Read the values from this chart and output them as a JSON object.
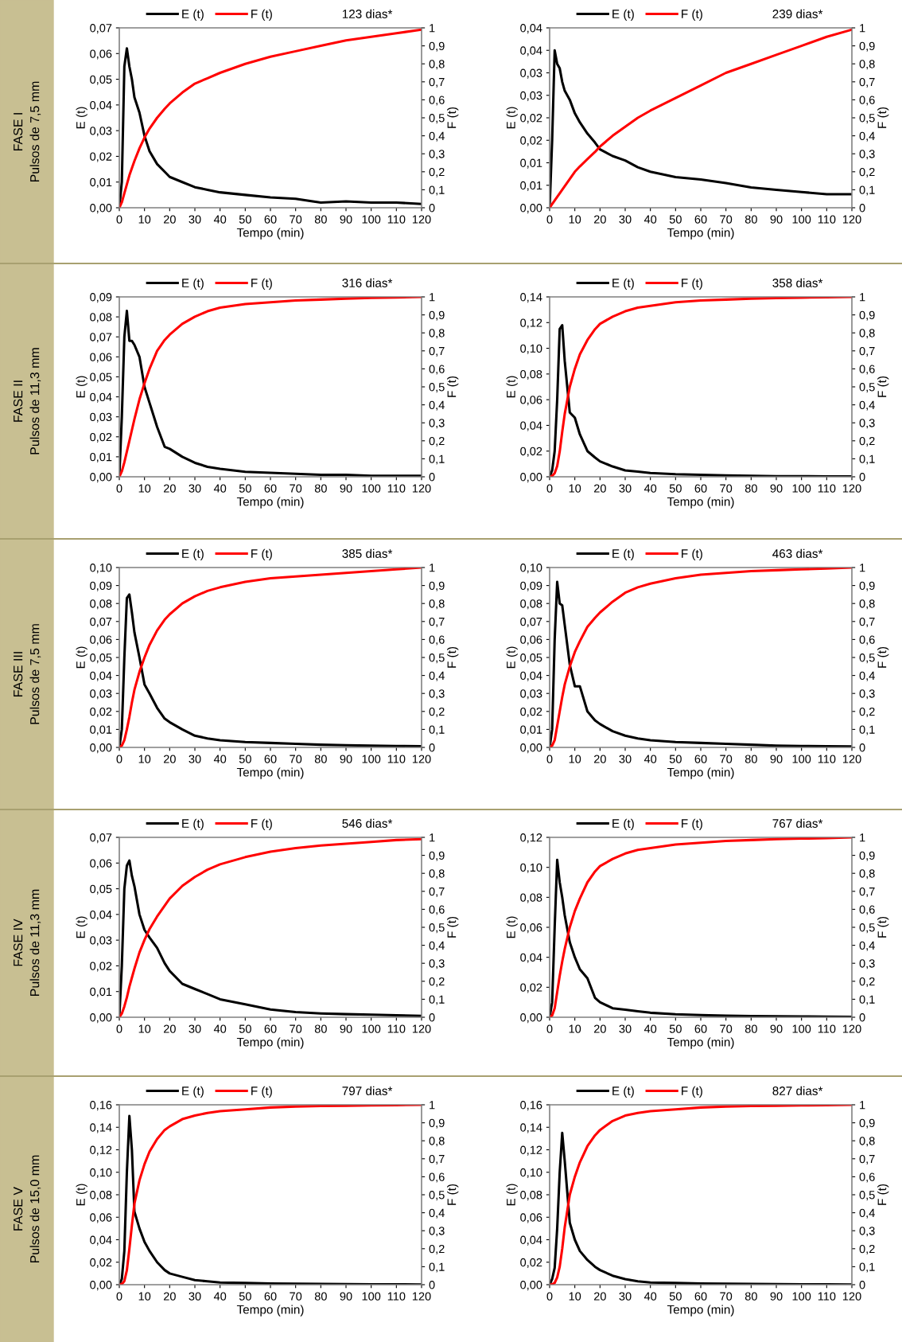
{
  "chart_data": [
    {
      "type": "line",
      "xlabel": "Tempo (min)",
      "ylabel": "E (t)",
      "y2label": "F (t)",
      "legend": "top",
      "annotations": [
        "123 dias*",
        "FASE I",
        "Pulsos de 7,5 mm"
      ],
      "x": [
        0,
        1,
        2,
        3,
        4,
        5,
        6,
        8,
        10,
        12,
        15,
        18,
        20,
        25,
        30,
        35,
        40,
        50,
        60,
        70,
        80,
        90,
        100,
        110,
        120
      ],
      "xlim": [
        0,
        120
      ],
      "xticks": [
        0,
        10,
        20,
        30,
        40,
        50,
        60,
        70,
        80,
        90,
        100,
        110,
        120
      ],
      "ylim": [
        0,
        0.07
      ],
      "yticks": [
        {
          "value": 0,
          "label": "0,00"
        },
        {
          "value": 0.01,
          "label": "0,01"
        },
        {
          "value": 0.02,
          "label": "0,02"
        },
        {
          "value": 0.03,
          "label": "0,03"
        },
        {
          "value": 0.04,
          "label": "0,04"
        },
        {
          "value": 0.05,
          "label": "0,05"
        },
        {
          "value": 0.06,
          "label": "0,06"
        },
        {
          "value": 0.07,
          "label": "0,07"
        }
      ],
      "y2lim": [
        0,
        1
      ],
      "y2ticks": [
        {
          "value": 0,
          "label": "0"
        },
        {
          "value": 0.1,
          "label": "0,1"
        },
        {
          "value": 0.2,
          "label": "0,2"
        },
        {
          "value": 0.3,
          "label": "0,3"
        },
        {
          "value": 0.4,
          "label": "0,4"
        },
        {
          "value": 0.5,
          "label": "0,5"
        },
        {
          "value": 0.6,
          "label": "0,6"
        },
        {
          "value": 0.7,
          "label": "0,7"
        },
        {
          "value": 0.8,
          "label": "0,8"
        },
        {
          "value": 0.9,
          "label": "0,9"
        },
        {
          "value": 1,
          "label": "1"
        }
      ],
      "series": [
        {
          "name": "E (t)",
          "color": "#000000",
          "values": [
            0,
            0.01,
            0.055,
            0.062,
            0.055,
            0.05,
            0.043,
            0.037,
            0.028,
            0.022,
            0.017,
            0.014,
            0.012,
            0.01,
            0.008,
            0.007,
            0.006,
            0.005,
            0.004,
            0.0035,
            0.002,
            0.0025,
            0.002,
            0.002,
            0.0015
          ]
        },
        {
          "name": "F (t)",
          "color": "#ff0000",
          "axis": "y2",
          "values": [
            0,
            0.03,
            0.08,
            0.13,
            0.18,
            0.22,
            0.26,
            0.33,
            0.39,
            0.44,
            0.5,
            0.55,
            0.58,
            0.64,
            0.69,
            0.72,
            0.75,
            0.8,
            0.84,
            0.87,
            0.9,
            0.93,
            0.95,
            0.97,
            0.99
          ]
        }
      ]
    },
    {
      "type": "line",
      "xlabel": "Tempo (min)",
      "ylabel": "E (t)",
      "y2label": "F (t)",
      "legend": "top",
      "annotations": [
        "239 dias*"
      ],
      "x": [
        0,
        1,
        2,
        3,
        4,
        5,
        6,
        8,
        10,
        12,
        15,
        18,
        20,
        25,
        30,
        35,
        40,
        50,
        60,
        70,
        80,
        90,
        100,
        110,
        120
      ],
      "xlim": [
        0,
        120
      ],
      "xticks": [
        0,
        10,
        20,
        30,
        40,
        50,
        60,
        70,
        80,
        90,
        100,
        110,
        120
      ],
      "ylim": [
        0,
        0.04
      ],
      "yticks": [
        {
          "value": 0,
          "label": "0,00"
        },
        {
          "value": 0.005,
          "label": "0,01"
        },
        {
          "value": 0.01,
          "label": "0,01"
        },
        {
          "value": 0.015,
          "label": "0,02"
        },
        {
          "value": 0.02,
          "label": "0,02"
        },
        {
          "value": 0.025,
          "label": "0,03"
        },
        {
          "value": 0.03,
          "label": "0,03"
        },
        {
          "value": 0.035,
          "label": "0,04"
        },
        {
          "value": 0.04,
          "label": "0,04"
        }
      ],
      "y2lim": [
        0,
        1
      ],
      "y2ticks": [
        {
          "value": 0,
          "label": "0"
        },
        {
          "value": 0.1,
          "label": "0,1"
        },
        {
          "value": 0.2,
          "label": "0,2"
        },
        {
          "value": 0.3,
          "label": "0,3"
        },
        {
          "value": 0.4,
          "label": "0,4"
        },
        {
          "value": 0.5,
          "label": "0,5"
        },
        {
          "value": 0.6,
          "label": "0,6"
        },
        {
          "value": 0.7,
          "label": "0,7"
        },
        {
          "value": 0.8,
          "label": "0,8"
        },
        {
          "value": 0.9,
          "label": "0,9"
        },
        {
          "value": 1,
          "label": "1"
        }
      ],
      "series": [
        {
          "name": "E (t)",
          "color": "#000000",
          "values": [
            0,
            0.015,
            0.035,
            0.032,
            0.031,
            0.028,
            0.026,
            0.024,
            0.021,
            0.019,
            0.0165,
            0.0145,
            0.013,
            0.0115,
            0.0105,
            0.009,
            0.008,
            0.0068,
            0.0063,
            0.0055,
            0.0045,
            0.004,
            0.0035,
            0.003,
            0.003
          ]
        },
        {
          "name": "F (t)",
          "color": "#ff0000",
          "axis": "y2",
          "values": [
            0,
            0.02,
            0.04,
            0.06,
            0.08,
            0.1,
            0.12,
            0.16,
            0.2,
            0.23,
            0.27,
            0.31,
            0.34,
            0.4,
            0.45,
            0.5,
            0.54,
            0.61,
            0.68,
            0.75,
            0.8,
            0.85,
            0.9,
            0.95,
            0.99
          ]
        }
      ]
    },
    {
      "type": "line",
      "xlabel": "Tempo (min)",
      "ylabel": "E (t)",
      "y2label": "F (t)",
      "legend": "top",
      "annotations": [
        "316 dias*",
        "FASE II",
        "Pulsos de 11,3 mm"
      ],
      "x": [
        0,
        1,
        2,
        3,
        4,
        5,
        6,
        8,
        10,
        12,
        15,
        18,
        20,
        25,
        30,
        35,
        40,
        50,
        60,
        70,
        80,
        90,
        100,
        110,
        120
      ],
      "xlim": [
        0,
        120
      ],
      "xticks": [
        0,
        10,
        20,
        30,
        40,
        50,
        60,
        70,
        80,
        90,
        100,
        110,
        120
      ],
      "ylim": [
        0,
        0.09
      ],
      "yticks": [
        {
          "value": 0,
          "label": "0,00"
        },
        {
          "value": 0.01,
          "label": "0,01"
        },
        {
          "value": 0.02,
          "label": "0,02"
        },
        {
          "value": 0.03,
          "label": "0,03"
        },
        {
          "value": 0.04,
          "label": "0,04"
        },
        {
          "value": 0.05,
          "label": "0,05"
        },
        {
          "value": 0.06,
          "label": "0,06"
        },
        {
          "value": 0.07,
          "label": "0,07"
        },
        {
          "value": 0.08,
          "label": "0,08"
        },
        {
          "value": 0.09,
          "label": "0,09"
        }
      ],
      "y2lim": [
        0,
        1
      ],
      "y2ticks": [
        {
          "value": 0,
          "label": "0"
        },
        {
          "value": 0.1,
          "label": "0,1"
        },
        {
          "value": 0.2,
          "label": "0,2"
        },
        {
          "value": 0.3,
          "label": "0,3"
        },
        {
          "value": 0.4,
          "label": "0,4"
        },
        {
          "value": 0.5,
          "label": "0,5"
        },
        {
          "value": 0.6,
          "label": "0,6"
        },
        {
          "value": 0.7,
          "label": "0,7"
        },
        {
          "value": 0.8,
          "label": "0,8"
        },
        {
          "value": 0.9,
          "label": "0,9"
        },
        {
          "value": 1,
          "label": "1"
        }
      ],
      "series": [
        {
          "name": "E (t)",
          "color": "#000000",
          "values": [
            0,
            0.03,
            0.07,
            0.083,
            0.068,
            0.068,
            0.066,
            0.06,
            0.045,
            0.037,
            0.025,
            0.015,
            0.014,
            0.01,
            0.007,
            0.005,
            0.004,
            0.0025,
            0.002,
            0.0015,
            0.001,
            0.001,
            0.0005,
            0.0005,
            0.0005
          ]
        },
        {
          "name": "F (t)",
          "color": "#ff0000",
          "axis": "y2",
          "values": [
            0,
            0.03,
            0.08,
            0.14,
            0.2,
            0.26,
            0.32,
            0.43,
            0.52,
            0.6,
            0.7,
            0.76,
            0.79,
            0.85,
            0.89,
            0.92,
            0.94,
            0.96,
            0.97,
            0.98,
            0.985,
            0.99,
            0.995,
            0.997,
            1
          ]
        }
      ]
    },
    {
      "type": "line",
      "xlabel": "Tempo (min)",
      "ylabel": "E (t)",
      "y2label": "F (t)",
      "legend": "top",
      "annotations": [
        "358 dias*"
      ],
      "x": [
        0,
        1,
        2,
        3,
        4,
        5,
        6,
        8,
        10,
        12,
        15,
        18,
        20,
        25,
        30,
        35,
        40,
        50,
        60,
        70,
        80,
        90,
        100,
        110,
        120
      ],
      "xlim": [
        0,
        120
      ],
      "xticks": [
        0,
        10,
        20,
        30,
        40,
        50,
        60,
        70,
        80,
        90,
        100,
        110,
        120
      ],
      "ylim": [
        0,
        0.14
      ],
      "yticks": [
        {
          "value": 0,
          "label": "0,00"
        },
        {
          "value": 0.02,
          "label": "0,02"
        },
        {
          "value": 0.04,
          "label": "0,04"
        },
        {
          "value": 0.06,
          "label": "0,06"
        },
        {
          "value": 0.08,
          "label": "0,08"
        },
        {
          "value": 0.1,
          "label": "0,10"
        },
        {
          "value": 0.12,
          "label": "0,12"
        },
        {
          "value": 0.14,
          "label": "0,14"
        }
      ],
      "y2lim": [
        0,
        1
      ],
      "y2ticks": [
        {
          "value": 0,
          "label": "0"
        },
        {
          "value": 0.1,
          "label": "0,1"
        },
        {
          "value": 0.2,
          "label": "0,2"
        },
        {
          "value": 0.3,
          "label": "0,3"
        },
        {
          "value": 0.4,
          "label": "0,4"
        },
        {
          "value": 0.5,
          "label": "0,5"
        },
        {
          "value": 0.6,
          "label": "0,6"
        },
        {
          "value": 0.7,
          "label": "0,7"
        },
        {
          "value": 0.8,
          "label": "0,8"
        },
        {
          "value": 0.9,
          "label": "0,9"
        },
        {
          "value": 1,
          "label": "1"
        }
      ],
      "series": [
        {
          "name": "E (t)",
          "color": "#000000",
          "values": [
            0,
            0.005,
            0.02,
            0.06,
            0.115,
            0.118,
            0.09,
            0.05,
            0.046,
            0.033,
            0.02,
            0.015,
            0.012,
            0.008,
            0.005,
            0.004,
            0.003,
            0.002,
            0.0015,
            0.001,
            0.0008,
            0.0005,
            0.0005,
            0.0003,
            0.0003
          ]
        },
        {
          "name": "F (t)",
          "color": "#ff0000",
          "axis": "y2",
          "values": [
            0,
            0.005,
            0.02,
            0.06,
            0.14,
            0.25,
            0.35,
            0.5,
            0.6,
            0.68,
            0.76,
            0.82,
            0.85,
            0.89,
            0.92,
            0.94,
            0.95,
            0.97,
            0.98,
            0.985,
            0.99,
            0.993,
            0.996,
            0.998,
            1
          ]
        }
      ]
    },
    {
      "type": "line",
      "xlabel": "Tempo (min)",
      "ylabel": "E (t)",
      "y2label": "F (t)",
      "legend": "top",
      "annotations": [
        "385 dias*",
        "FASE III",
        "Pulsos de 7,5 mm"
      ],
      "x": [
        0,
        1,
        2,
        3,
        4,
        5,
        6,
        8,
        10,
        12,
        15,
        18,
        20,
        25,
        30,
        35,
        40,
        50,
        60,
        70,
        80,
        90,
        100,
        110,
        120
      ],
      "xlim": [
        0,
        120
      ],
      "xticks": [
        0,
        10,
        20,
        30,
        40,
        50,
        60,
        70,
        80,
        90,
        100,
        110,
        120
      ],
      "ylim": [
        0,
        0.1
      ],
      "yticks": [
        {
          "value": 0,
          "label": "0,00"
        },
        {
          "value": 0.01,
          "label": "0,01"
        },
        {
          "value": 0.02,
          "label": "0,02"
        },
        {
          "value": 0.03,
          "label": "0,03"
        },
        {
          "value": 0.04,
          "label": "0,04"
        },
        {
          "value": 0.05,
          "label": "0,05"
        },
        {
          "value": 0.06,
          "label": "0,06"
        },
        {
          "value": 0.07,
          "label": "0,07"
        },
        {
          "value": 0.08,
          "label": "0,08"
        },
        {
          "value": 0.09,
          "label": "0,09"
        },
        {
          "value": 0.1,
          "label": "0,10"
        }
      ],
      "y2lim": [
        0,
        1
      ],
      "y2ticks": [
        {
          "value": 0,
          "label": "0"
        },
        {
          "value": 0.1,
          "label": "0,1"
        },
        {
          "value": 0.2,
          "label": "0,2"
        },
        {
          "value": 0.3,
          "label": "0,3"
        },
        {
          "value": 0.4,
          "label": "0,4"
        },
        {
          "value": 0.5,
          "label": "0,5"
        },
        {
          "value": 0.6,
          "label": "0,6"
        },
        {
          "value": 0.7,
          "label": "0,7"
        },
        {
          "value": 0.8,
          "label": "0,8"
        },
        {
          "value": 0.9,
          "label": "0,9"
        },
        {
          "value": 1,
          "label": "1"
        }
      ],
      "series": [
        {
          "name": "E (t)",
          "color": "#000000",
          "values": [
            0,
            0.01,
            0.05,
            0.083,
            0.085,
            0.075,
            0.064,
            0.05,
            0.035,
            0.03,
            0.022,
            0.016,
            0.014,
            0.01,
            0.0065,
            0.005,
            0.004,
            0.003,
            0.0025,
            0.002,
            0.0015,
            0.0012,
            0.001,
            0.0008,
            0.0006
          ]
        },
        {
          "name": "F (t)",
          "color": "#ff0000",
          "axis": "y2",
          "values": [
            0,
            0.01,
            0.04,
            0.1,
            0.17,
            0.25,
            0.32,
            0.42,
            0.5,
            0.57,
            0.65,
            0.71,
            0.74,
            0.8,
            0.84,
            0.87,
            0.89,
            0.92,
            0.94,
            0.95,
            0.96,
            0.97,
            0.98,
            0.99,
            1
          ]
        }
      ]
    },
    {
      "type": "line",
      "xlabel": "Tempo (min)",
      "ylabel": "E (t)",
      "y2label": "F (t)",
      "legend": "top",
      "annotations": [
        "463 dias*"
      ],
      "x": [
        0,
        1,
        2,
        3,
        4,
        5,
        6,
        8,
        10,
        12,
        15,
        18,
        20,
        25,
        30,
        35,
        40,
        50,
        60,
        70,
        80,
        90,
        100,
        110,
        120
      ],
      "xlim": [
        0,
        120
      ],
      "xticks": [
        0,
        10,
        20,
        30,
        40,
        50,
        60,
        70,
        80,
        90,
        100,
        110,
        120
      ],
      "ylim": [
        0,
        0.1
      ],
      "yticks": [
        {
          "value": 0,
          "label": "0,00"
        },
        {
          "value": 0.01,
          "label": "0,01"
        },
        {
          "value": 0.02,
          "label": "0,02"
        },
        {
          "value": 0.03,
          "label": "0,03"
        },
        {
          "value": 0.04,
          "label": "0,04"
        },
        {
          "value": 0.05,
          "label": "0,05"
        },
        {
          "value": 0.06,
          "label": "0,06"
        },
        {
          "value": 0.07,
          "label": "0,07"
        },
        {
          "value": 0.08,
          "label": "0,08"
        },
        {
          "value": 0.09,
          "label": "0,09"
        },
        {
          "value": 0.1,
          "label": "0,10"
        }
      ],
      "y2lim": [
        0,
        1
      ],
      "y2ticks": [
        {
          "value": 0,
          "label": "0"
        },
        {
          "value": 0.1,
          "label": "0,1"
        },
        {
          "value": 0.2,
          "label": "0,2"
        },
        {
          "value": 0.3,
          "label": "0,3"
        },
        {
          "value": 0.4,
          "label": "0,4"
        },
        {
          "value": 0.5,
          "label": "0,5"
        },
        {
          "value": 0.6,
          "label": "0,6"
        },
        {
          "value": 0.7,
          "label": "0,7"
        },
        {
          "value": 0.8,
          "label": "0,8"
        },
        {
          "value": 0.9,
          "label": "0,9"
        },
        {
          "value": 1,
          "label": "1"
        }
      ],
      "series": [
        {
          "name": "E (t)",
          "color": "#000000",
          "values": [
            0,
            0.01,
            0.06,
            0.092,
            0.08,
            0.079,
            0.068,
            0.046,
            0.034,
            0.034,
            0.02,
            0.015,
            0.013,
            0.009,
            0.0065,
            0.005,
            0.004,
            0.003,
            0.0025,
            0.002,
            0.0015,
            0.001,
            0.0008,
            0.0006,
            0.0005
          ]
        },
        {
          "name": "F (t)",
          "color": "#ff0000",
          "axis": "y2",
          "values": [
            0,
            0.01,
            0.04,
            0.12,
            0.2,
            0.28,
            0.35,
            0.45,
            0.53,
            0.59,
            0.67,
            0.72,
            0.75,
            0.81,
            0.86,
            0.89,
            0.91,
            0.94,
            0.96,
            0.97,
            0.98,
            0.985,
            0.99,
            0.995,
            1
          ]
        }
      ]
    },
    {
      "type": "line",
      "xlabel": "Tempo (min)",
      "ylabel": "E (t)",
      "y2label": "F (t)",
      "legend": "top",
      "annotations": [
        "546 dias*",
        "FASE IV",
        "Pulsos de 11,3 mm"
      ],
      "x": [
        0,
        1,
        2,
        3,
        4,
        5,
        6,
        8,
        10,
        12,
        15,
        18,
        20,
        25,
        30,
        35,
        40,
        50,
        60,
        70,
        80,
        90,
        100,
        110,
        120
      ],
      "xlim": [
        0,
        120
      ],
      "xticks": [
        0,
        10,
        20,
        30,
        40,
        50,
        60,
        70,
        80,
        90,
        100,
        110,
        120
      ],
      "ylim": [
        0,
        0.07
      ],
      "yticks": [
        {
          "value": 0,
          "label": "0,00"
        },
        {
          "value": 0.01,
          "label": "0,01"
        },
        {
          "value": 0.02,
          "label": "0,02"
        },
        {
          "value": 0.03,
          "label": "0,03"
        },
        {
          "value": 0.04,
          "label": "0,04"
        },
        {
          "value": 0.05,
          "label": "0,05"
        },
        {
          "value": 0.06,
          "label": "0,06"
        },
        {
          "value": 0.07,
          "label": "0,07"
        }
      ],
      "y2lim": [
        0,
        1
      ],
      "y2ticks": [
        {
          "value": 0,
          "label": "0"
        },
        {
          "value": 0.1,
          "label": "0,1"
        },
        {
          "value": 0.2,
          "label": "0,2"
        },
        {
          "value": 0.3,
          "label": "0,3"
        },
        {
          "value": 0.4,
          "label": "0,4"
        },
        {
          "value": 0.5,
          "label": "0,5"
        },
        {
          "value": 0.6,
          "label": "0,6"
        },
        {
          "value": 0.7,
          "label": "0,7"
        },
        {
          "value": 0.8,
          "label": "0,8"
        },
        {
          "value": 0.9,
          "label": "0,9"
        },
        {
          "value": 1,
          "label": "1"
        }
      ],
      "series": [
        {
          "name": "E (t)",
          "color": "#000000",
          "values": [
            0,
            0.02,
            0.05,
            0.059,
            0.061,
            0.055,
            0.051,
            0.04,
            0.034,
            0.031,
            0.027,
            0.021,
            0.018,
            0.013,
            0.011,
            0.009,
            0.007,
            0.005,
            0.003,
            0.002,
            0.0015,
            0.0012,
            0.001,
            0.0008,
            0.0005
          ]
        },
        {
          "name": "F (t)",
          "color": "#ff0000",
          "axis": "y2",
          "values": [
            0,
            0.02,
            0.06,
            0.11,
            0.17,
            0.22,
            0.27,
            0.36,
            0.43,
            0.49,
            0.56,
            0.62,
            0.66,
            0.73,
            0.78,
            0.82,
            0.85,
            0.89,
            0.92,
            0.94,
            0.955,
            0.965,
            0.975,
            0.985,
            0.99
          ]
        }
      ]
    },
    {
      "type": "line",
      "xlabel": "Tempo (min)",
      "ylabel": "E (t)",
      "y2label": "F (t)",
      "legend": "top",
      "annotations": [
        "767 dias*"
      ],
      "x": [
        0,
        1,
        2,
        3,
        4,
        5,
        6,
        8,
        10,
        12,
        15,
        18,
        20,
        25,
        30,
        35,
        40,
        50,
        60,
        70,
        80,
        90,
        100,
        110,
        120
      ],
      "xlim": [
        0,
        120
      ],
      "xticks": [
        0,
        10,
        20,
        30,
        40,
        50,
        60,
        70,
        80,
        90,
        100,
        110,
        120
      ],
      "ylim": [
        0,
        0.12
      ],
      "yticks": [
        {
          "value": 0,
          "label": "0,00"
        },
        {
          "value": 0.02,
          "label": "0,02"
        },
        {
          "value": 0.04,
          "label": "0,04"
        },
        {
          "value": 0.06,
          "label": "0,06"
        },
        {
          "value": 0.08,
          "label": "0,08"
        },
        {
          "value": 0.1,
          "label": "0,10"
        },
        {
          "value": 0.12,
          "label": "0,12"
        }
      ],
      "y2lim": [
        0,
        1
      ],
      "y2ticks": [
        {
          "value": 0,
          "label": "0"
        },
        {
          "value": 0.1,
          "label": "0,1"
        },
        {
          "value": 0.2,
          "label": "0,2"
        },
        {
          "value": 0.3,
          "label": "0,3"
        },
        {
          "value": 0.4,
          "label": "0,4"
        },
        {
          "value": 0.5,
          "label": "0,5"
        },
        {
          "value": 0.6,
          "label": "0,6"
        },
        {
          "value": 0.7,
          "label": "0,7"
        },
        {
          "value": 0.8,
          "label": "0,8"
        },
        {
          "value": 0.9,
          "label": "0,9"
        },
        {
          "value": 1,
          "label": "1"
        }
      ],
      "series": [
        {
          "name": "E (t)",
          "color": "#000000",
          "values": [
            0,
            0.01,
            0.06,
            0.105,
            0.09,
            0.08,
            0.068,
            0.05,
            0.04,
            0.032,
            0.026,
            0.013,
            0.01,
            0.006,
            0.005,
            0.004,
            0.003,
            0.002,
            0.0015,
            0.001,
            0.0008,
            0.0006,
            0.0005,
            0.0004,
            0.0003
          ]
        },
        {
          "name": "F (t)",
          "color": "#ff0000",
          "axis": "y2",
          "values": [
            0,
            0.01,
            0.05,
            0.14,
            0.23,
            0.31,
            0.38,
            0.5,
            0.59,
            0.66,
            0.75,
            0.81,
            0.84,
            0.88,
            0.91,
            0.93,
            0.94,
            0.96,
            0.97,
            0.98,
            0.985,
            0.99,
            0.993,
            0.996,
            1
          ]
        }
      ]
    },
    {
      "type": "line",
      "xlabel": "Tempo (min)",
      "ylabel": "E (t)",
      "y2label": "F (t)",
      "legend": "top",
      "annotations": [
        "797 dias*",
        "FASE V",
        "Pulsos de 15,0 mm"
      ],
      "x": [
        0,
        1,
        2,
        3,
        4,
        5,
        6,
        8,
        10,
        12,
        15,
        18,
        20,
        25,
        30,
        35,
        40,
        50,
        60,
        70,
        80,
        90,
        100,
        110,
        120
      ],
      "xlim": [
        0,
        120
      ],
      "xticks": [
        0,
        10,
        20,
        30,
        40,
        50,
        60,
        70,
        80,
        90,
        100,
        110,
        120
      ],
      "ylim": [
        0,
        0.16
      ],
      "yticks": [
        {
          "value": 0,
          "label": "0,00"
        },
        {
          "value": 0.02,
          "label": "0,02"
        },
        {
          "value": 0.04,
          "label": "0,04"
        },
        {
          "value": 0.06,
          "label": "0,06"
        },
        {
          "value": 0.08,
          "label": "0,08"
        },
        {
          "value": 0.1,
          "label": "0,10"
        },
        {
          "value": 0.12,
          "label": "0,12"
        },
        {
          "value": 0.14,
          "label": "0,14"
        },
        {
          "value": 0.16,
          "label": "0,16"
        }
      ],
      "y2lim": [
        0,
        1
      ],
      "y2ticks": [
        {
          "value": 0,
          "label": "0"
        },
        {
          "value": 0.1,
          "label": "0,1"
        },
        {
          "value": 0.2,
          "label": "0,2"
        },
        {
          "value": 0.3,
          "label": "0,3"
        },
        {
          "value": 0.4,
          "label": "0,4"
        },
        {
          "value": 0.5,
          "label": "0,5"
        },
        {
          "value": 0.6,
          "label": "0,6"
        },
        {
          "value": 0.7,
          "label": "0,7"
        },
        {
          "value": 0.8,
          "label": "0,8"
        },
        {
          "value": 0.9,
          "label": "0,9"
        },
        {
          "value": 1,
          "label": "1"
        }
      ],
      "series": [
        {
          "name": "E (t)",
          "color": "#000000",
          "values": [
            0,
            0.005,
            0.03,
            0.1,
            0.15,
            0.12,
            0.065,
            0.05,
            0.038,
            0.03,
            0.02,
            0.013,
            0.01,
            0.007,
            0.004,
            0.003,
            0.002,
            0.0015,
            0.001,
            0.0008,
            0.0006,
            0.0005,
            0.0004,
            0.0003,
            0.0002
          ]
        },
        {
          "name": "F (t)",
          "color": "#ff0000",
          "axis": "y2",
          "values": [
            0,
            0.003,
            0.02,
            0.08,
            0.2,
            0.33,
            0.45,
            0.58,
            0.67,
            0.74,
            0.81,
            0.86,
            0.88,
            0.92,
            0.94,
            0.955,
            0.965,
            0.975,
            0.985,
            0.99,
            0.993,
            0.995,
            0.997,
            0.998,
            1
          ]
        }
      ]
    },
    {
      "type": "line",
      "xlabel": "Tempo (min)",
      "ylabel": "E (t)",
      "y2label": "F (t)",
      "legend": "top",
      "annotations": [
        "827 dias*"
      ],
      "x": [
        0,
        1,
        2,
        3,
        4,
        5,
        6,
        8,
        10,
        12,
        15,
        18,
        20,
        25,
        30,
        35,
        40,
        50,
        60,
        70,
        80,
        90,
        100,
        110,
        120
      ],
      "xlim": [
        0,
        120
      ],
      "xticks": [
        0,
        10,
        20,
        30,
        40,
        50,
        60,
        70,
        80,
        90,
        100,
        110,
        120
      ],
      "ylim": [
        0,
        0.16
      ],
      "yticks": [
        {
          "value": 0,
          "label": "0,00"
        },
        {
          "value": 0.02,
          "label": "0,02"
        },
        {
          "value": 0.04,
          "label": "0,04"
        },
        {
          "value": 0.06,
          "label": "0,06"
        },
        {
          "value": 0.08,
          "label": "0,08"
        },
        {
          "value": 0.1,
          "label": "0,10"
        },
        {
          "value": 0.12,
          "label": "0,12"
        },
        {
          "value": 0.14,
          "label": "0,14"
        },
        {
          "value": 0.16,
          "label": "0,16"
        }
      ],
      "y2lim": [
        0,
        1
      ],
      "y2ticks": [
        {
          "value": 0,
          "label": "0"
        },
        {
          "value": 0.1,
          "label": "0,1"
        },
        {
          "value": 0.2,
          "label": "0,2"
        },
        {
          "value": 0.3,
          "label": "0,3"
        },
        {
          "value": 0.4,
          "label": "0,4"
        },
        {
          "value": 0.5,
          "label": "0,5"
        },
        {
          "value": 0.6,
          "label": "0,6"
        },
        {
          "value": 0.7,
          "label": "0,7"
        },
        {
          "value": 0.8,
          "label": "0,8"
        },
        {
          "value": 0.9,
          "label": "0,9"
        },
        {
          "value": 1,
          "label": "1"
        }
      ],
      "series": [
        {
          "name": "E (t)",
          "color": "#000000",
          "values": [
            0,
            0.005,
            0.015,
            0.05,
            0.1,
            0.135,
            0.11,
            0.055,
            0.04,
            0.03,
            0.022,
            0.016,
            0.013,
            0.008,
            0.005,
            0.003,
            0.002,
            0.0015,
            0.001,
            0.0008,
            0.0006,
            0.0005,
            0.0004,
            0.0003,
            0.0002
          ]
        },
        {
          "name": "F (t)",
          "color": "#ff0000",
          "axis": "y2",
          "values": [
            0,
            0.002,
            0.01,
            0.04,
            0.1,
            0.2,
            0.32,
            0.5,
            0.6,
            0.68,
            0.77,
            0.83,
            0.86,
            0.91,
            0.94,
            0.955,
            0.965,
            0.975,
            0.985,
            0.99,
            0.993,
            0.995,
            0.997,
            0.998,
            1
          ]
        }
      ]
    }
  ]
}
